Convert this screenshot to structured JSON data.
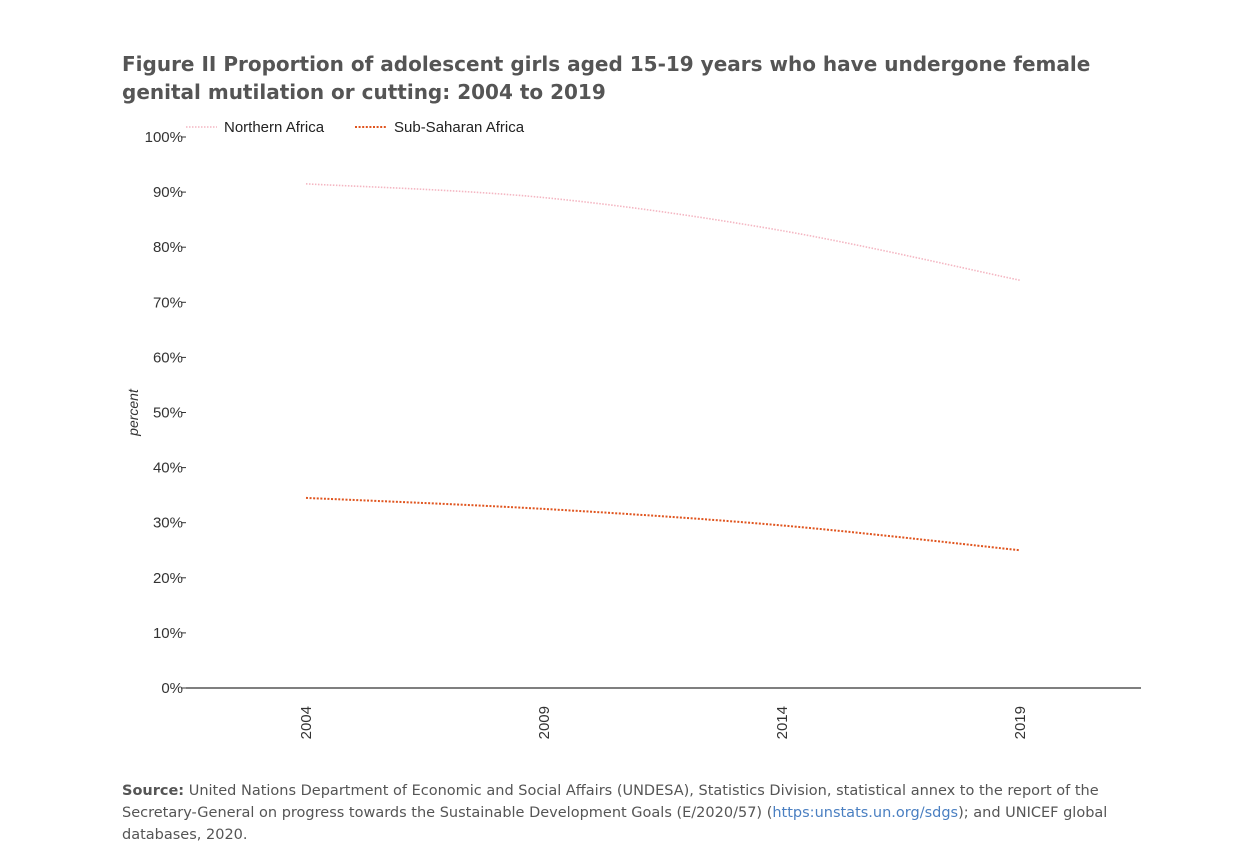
{
  "figure": {
    "label": "Figure II",
    "title": "Proportion of adolescent girls aged 15-19 years who have undergone female genital mutilation or cutting: 2004 to 2019"
  },
  "chart_data": {
    "type": "line",
    "x": [
      "2004",
      "2009",
      "2014",
      "2019"
    ],
    "ylabel": "percent",
    "xlabel": "",
    "ylim": [
      0,
      100
    ],
    "yticks": [
      "0%",
      "10%",
      "20%",
      "30%",
      "40%",
      "50%",
      "60%",
      "70%",
      "80%",
      "90%",
      "100%"
    ],
    "grid": false,
    "legend_position": "top-left",
    "series": [
      {
        "name": "Northern Africa",
        "values": [
          91.5,
          89,
          83,
          74
        ],
        "color": "#f4b6c2",
        "style": "dotted"
      },
      {
        "name": "Sub-Saharan Africa",
        "values": [
          34.5,
          32.5,
          29.5,
          25
        ],
        "color": "#e0551f",
        "style": "dotted"
      }
    ]
  },
  "source": {
    "label": "Source:",
    "text_before_link": " United Nations Department of Economic and Social Affairs (UNDESA), Statistics Division, statistical annex to the report of the Secretary-General on progress towards the Sustainable Development Goals (E/2020/57) (",
    "link_text": "https:unstats.un.org/sdgs",
    "text_after_link": "); and UNICEF global databases, 2020."
  }
}
